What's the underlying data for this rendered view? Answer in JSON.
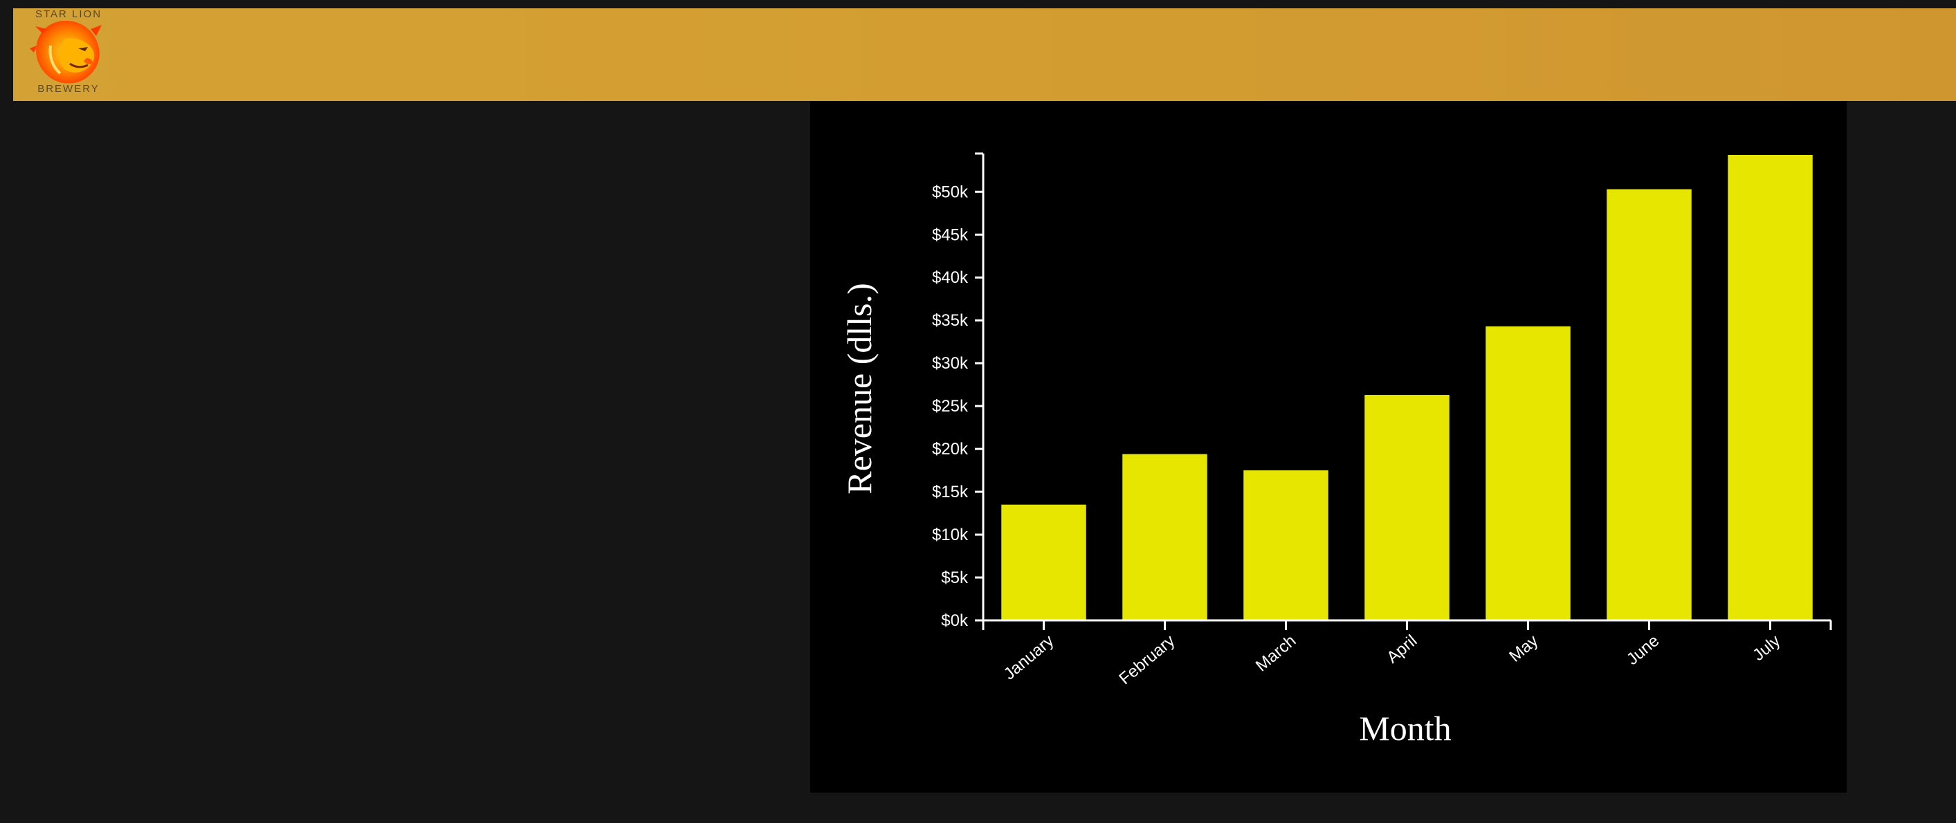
{
  "brand": {
    "name_top": "STAR LION",
    "name_bottom": "BREWERY",
    "logo_icon": "lion-head-icon"
  },
  "colors": {
    "navbar": "#d4a134",
    "page_bg": "#151515",
    "chart_bg": "#000000",
    "bar": "#e6e600",
    "axis": "#ffffff"
  },
  "chart_data": {
    "type": "bar",
    "title": "",
    "xlabel": "Month",
    "ylabel": "Revenue (dlls.)",
    "categories": [
      "January",
      "February",
      "March",
      "April",
      "May",
      "June",
      "July"
    ],
    "values": [
      13500,
      19400,
      17500,
      26300,
      34300,
      50300,
      54300
    ],
    "ylim": [
      0,
      54300
    ],
    "yticks": [
      0,
      5000,
      10000,
      15000,
      20000,
      25000,
      30000,
      35000,
      40000,
      45000,
      50000
    ],
    "ytick_labels": [
      "$0k",
      "$5k",
      "$10k",
      "$15k",
      "$20k",
      "$25k",
      "$30k",
      "$35k",
      "$40k",
      "$45k",
      "$50k"
    ],
    "grid": false,
    "legend": "none"
  }
}
